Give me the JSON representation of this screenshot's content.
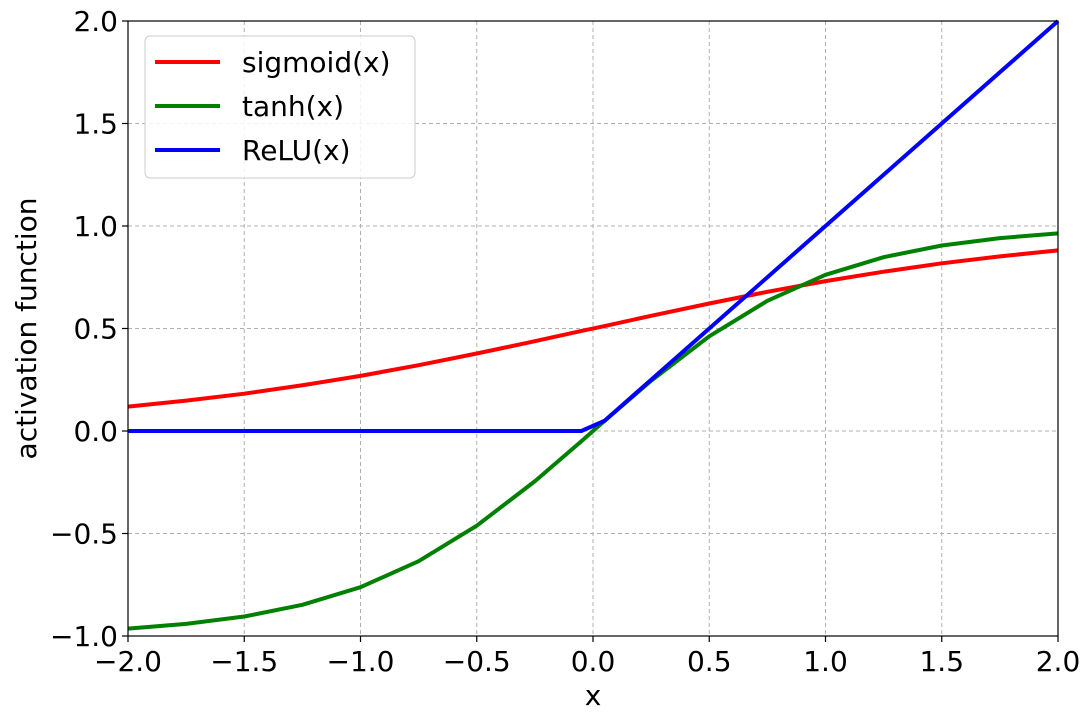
{
  "chart_data": {
    "type": "line",
    "title": "",
    "xlabel": "x",
    "ylabel": "activation function",
    "xlim": [
      -2.0,
      2.0
    ],
    "ylim": [
      -1.0,
      2.0
    ],
    "grid": true,
    "legend_position": "top-left",
    "x_ticks": [
      -2.0,
      -1.5,
      -1.0,
      -0.5,
      0.0,
      0.5,
      1.0,
      1.5,
      2.0
    ],
    "x_tick_labels": [
      "−2.0",
      "−1.5",
      "−1.0",
      "−0.5",
      "0.0",
      "0.5",
      "1.0",
      "1.5",
      "2.0"
    ],
    "y_ticks": [
      -1.0,
      -0.5,
      0.0,
      0.5,
      1.0,
      1.5,
      2.0
    ],
    "y_tick_labels": [
      "−1.0",
      "−0.5",
      "0.0",
      "0.5",
      "1.0",
      "1.5",
      "2.0"
    ],
    "x": [
      -2.0,
      -1.75,
      -1.5,
      -1.25,
      -1.0,
      -0.75,
      -0.5,
      -0.25,
      -0.05,
      0.05,
      0.25,
      0.5,
      0.75,
      1.0,
      1.25,
      1.5,
      1.75,
      2.0
    ],
    "series": [
      {
        "name": "sigmoid(x)",
        "color": "#ff0000",
        "values": [
          0.119,
          0.148,
          0.182,
          0.223,
          0.269,
          0.321,
          0.378,
          0.438,
          0.488,
          0.512,
          0.562,
          0.622,
          0.679,
          0.731,
          0.777,
          0.818,
          0.852,
          0.881
        ]
      },
      {
        "name": "tanh(x)",
        "color": "#008000",
        "values": [
          -0.964,
          -0.941,
          -0.905,
          -0.848,
          -0.762,
          -0.635,
          -0.462,
          -0.245,
          -0.05,
          0.05,
          0.245,
          0.462,
          0.635,
          0.762,
          0.848,
          0.905,
          0.941,
          0.964
        ]
      },
      {
        "name": "ReLU(x)",
        "color": "#0000ff",
        "values": [
          0.0,
          0.0,
          0.0,
          0.0,
          0.0,
          0.0,
          0.0,
          0.0,
          0.0,
          0.05,
          0.25,
          0.5,
          0.75,
          1.0,
          1.25,
          1.5,
          1.75,
          2.0
        ]
      }
    ]
  }
}
